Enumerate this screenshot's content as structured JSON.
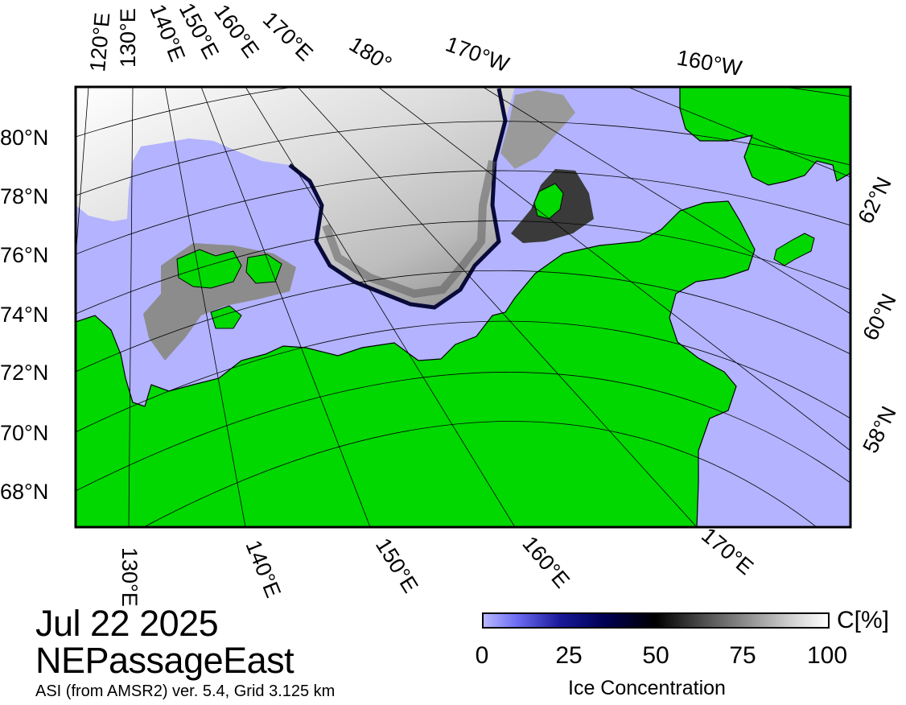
{
  "map": {
    "date": "Jul 22 2025",
    "region": "NEPassageEast",
    "source_note": "ASI (from AMSR2) ver. 5.4,  Grid 3.125 km",
    "layers": [
      {
        "name": "open-water",
        "color": "#b3b3ff"
      },
      {
        "name": "land",
        "color": "#00d800"
      },
      {
        "name": "sea-ice",
        "color": "#ffffff"
      }
    ],
    "top_lon_labels": [
      "120°E",
      "130°E",
      "140°E",
      "150°E",
      "160°E",
      "170°E",
      "180°",
      "170°W",
      "160°W"
    ],
    "bottom_lon_labels": [
      "130°E",
      "140°E",
      "150°E",
      "160°E",
      "170°E"
    ],
    "left_lat_labels": [
      "80°N",
      "78°N",
      "76°N",
      "74°N",
      "72°N",
      "70°N",
      "68°N"
    ],
    "right_lat_labels": [
      "62°N",
      "60°N",
      "58°N"
    ]
  },
  "legend": {
    "unit": "C[%]",
    "caption": "Ice Concentration",
    "ticks": [
      "0",
      "25",
      "50",
      "75",
      "100"
    ],
    "colorscale": [
      "#b8b8ff",
      "#1a1a9a",
      "#000000",
      "#8c8c8c",
      "#ffffff"
    ]
  }
}
